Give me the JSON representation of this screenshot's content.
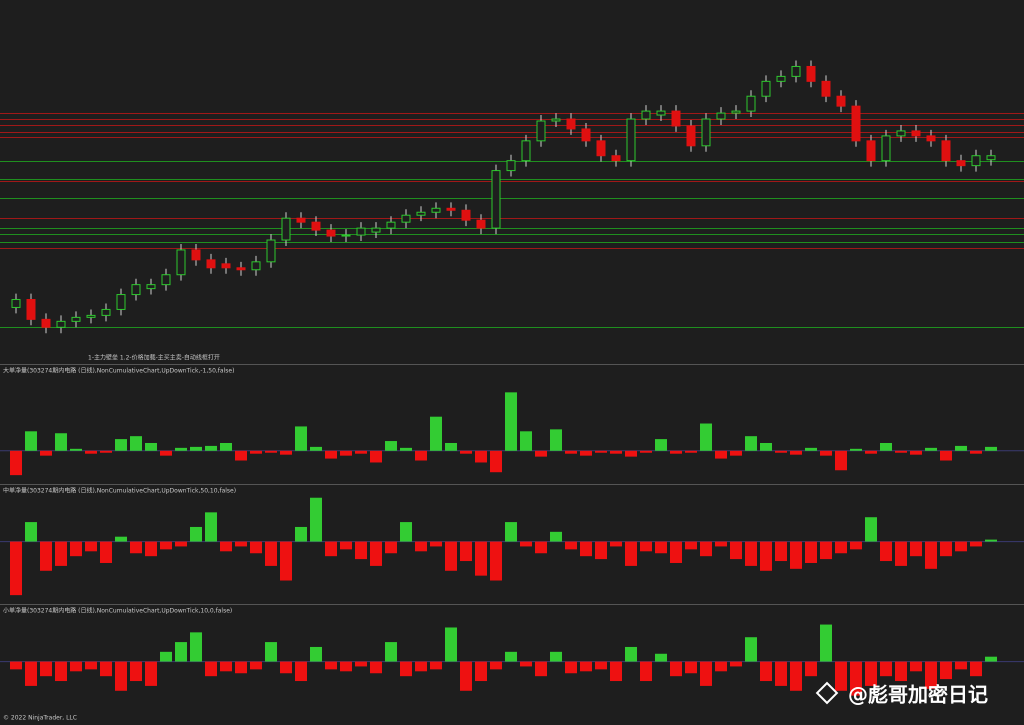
{
  "chart_data": [
    {
      "type": "candlestick",
      "annotation": "1-主力壁垒 1.2-价格加载-主买主卖-自动线框打开",
      "up_color": "#2ec82e",
      "down_color": "#e01010",
      "ylim": [
        0,
        363
      ],
      "open": [
        55,
        63,
        43,
        35,
        41,
        45,
        47,
        53,
        68,
        74,
        78,
        88,
        113,
        103,
        99,
        95,
        93,
        101,
        123,
        145,
        141,
        133,
        127,
        128,
        131,
        135,
        141,
        148,
        151,
        155,
        153,
        143,
        135,
        193,
        203,
        223,
        243,
        245,
        235,
        223,
        208,
        203,
        245,
        249,
        253,
        238,
        218,
        245,
        251,
        253,
        268,
        283,
        288,
        298,
        283,
        268,
        258,
        223,
        203,
        228,
        233,
        228,
        223,
        203,
        198,
        204
      ],
      "high": [
        69,
        69,
        49,
        47,
        51,
        53,
        59,
        74,
        84,
        84,
        94,
        119,
        119,
        109,
        105,
        101,
        107,
        129,
        151,
        151,
        147,
        139,
        134,
        141,
        141,
        147,
        154,
        157,
        161,
        161,
        159,
        149,
        199,
        209,
        229,
        249,
        251,
        251,
        241,
        229,
        214,
        251,
        259,
        259,
        259,
        244,
        251,
        257,
        259,
        274,
        289,
        294,
        304,
        304,
        289,
        274,
        264,
        229,
        234,
        239,
        239,
        234,
        229,
        209,
        214,
        214
      ],
      "low": [
        49,
        37,
        29,
        29,
        35,
        39,
        41,
        47,
        62,
        68,
        72,
        82,
        97,
        89,
        89,
        87,
        87,
        95,
        117,
        135,
        127,
        121,
        121,
        122,
        125,
        129,
        135,
        142,
        145,
        147,
        137,
        129,
        129,
        187,
        197,
        217,
        237,
        229,
        217,
        202,
        197,
        197,
        239,
        243,
        232,
        212,
        212,
        239,
        245,
        247,
        262,
        277,
        282,
        277,
        262,
        252,
        217,
        197,
        197,
        222,
        222,
        217,
        197,
        192,
        192,
        198
      ],
      "close": [
        63,
        43,
        35,
        41,
        45,
        47,
        53,
        68,
        78,
        78,
        88,
        113,
        103,
        95,
        95,
        93,
        101,
        123,
        145,
        141,
        133,
        127,
        128,
        135,
        135,
        141,
        148,
        151,
        155,
        153,
        143,
        135,
        193,
        203,
        223,
        243,
        245,
        235,
        223,
        208,
        203,
        245,
        253,
        253,
        238,
        218,
        245,
        251,
        253,
        268,
        283,
        288,
        298,
        283,
        268,
        258,
        223,
        203,
        228,
        233,
        228,
        223,
        203,
        198,
        208,
        208
      ],
      "levels": [
        {
          "value": 251,
          "color": "#a01818"
        },
        {
          "value": 245,
          "color": "#a01818"
        },
        {
          "value": 239,
          "color": "#a01818"
        },
        {
          "value": 232,
          "color": "#a01818"
        },
        {
          "value": 227,
          "color": "#a01818"
        },
        {
          "value": 183,
          "color": "#a01818"
        },
        {
          "value": 145,
          "color": "#a01818"
        },
        {
          "value": 115,
          "color": "#a01818"
        },
        {
          "value": 203,
          "color": "#1f8f1f"
        },
        {
          "value": 185,
          "color": "#1f8f1f"
        },
        {
          "value": 165,
          "color": "#1f8f1f"
        },
        {
          "value": 135,
          "color": "#1f8f1f"
        },
        {
          "value": 129,
          "color": "#1f8f1f"
        },
        {
          "value": 121,
          "color": "#1f8f1f"
        },
        {
          "value": 35,
          "color": "#1f8f1f"
        }
      ]
    },
    {
      "type": "bar",
      "title": "大单净量(303274期内电路 (日线),NonCumulativeChart,UpDownTick,-1,50,false)",
      "pos_color": "#33cc33",
      "neg_color": "#ee1111",
      "ylim": [
        -30,
        85
      ],
      "values": [
        -25,
        20,
        -5,
        18,
        2,
        -3,
        -2,
        12,
        15,
        8,
        -5,
        3,
        4,
        5,
        8,
        -10,
        -3,
        -2,
        -4,
        25,
        4,
        -8,
        -5,
        -3,
        -12,
        10,
        3,
        -10,
        35,
        8,
        -3,
        -12,
        -22,
        60,
        20,
        -6,
        22,
        -3,
        -5,
        -2,
        -3,
        -6,
        -2,
        12,
        -3,
        -2,
        28,
        -8,
        -5,
        15,
        8,
        -2,
        -4,
        3,
        -5,
        -20,
        2,
        -3,
        8,
        -2,
        -4,
        3,
        -10,
        5,
        -3,
        4
      ]
    },
    {
      "type": "bar",
      "title": "中单净量(303274期内电路 (日线),NonCumulativeChart,UpDownTick,50,10,false)",
      "pos_color": "#33cc33",
      "neg_color": "#ee1111",
      "ylim": [
        -60,
        55
      ],
      "values": [
        -55,
        20,
        -30,
        -25,
        -15,
        -10,
        -22,
        5,
        -12,
        -15,
        -8,
        -5,
        15,
        30,
        -10,
        -5,
        -12,
        -25,
        -40,
        15,
        45,
        -15,
        -8,
        -18,
        -25,
        -12,
        20,
        -10,
        -5,
        -30,
        -20,
        -35,
        -40,
        20,
        -5,
        -12,
        10,
        -8,
        -15,
        -18,
        -5,
        -25,
        -10,
        -12,
        -22,
        -8,
        -15,
        -5,
        -18,
        -25,
        -30,
        -20,
        -28,
        -22,
        -18,
        -12,
        -8,
        25,
        -20,
        -25,
        -15,
        -28,
        -15,
        -10,
        -5,
        2
      ]
    },
    {
      "type": "bar",
      "title": "小单净量(303274期内电路 (日线),NonCumulativeChart,UpDownTick,10,0,false)",
      "pos_color": "#33cc33",
      "neg_color": "#ee1111",
      "ylim": [
        -60,
        55
      ],
      "values": [
        -8,
        -25,
        -15,
        -20,
        -10,
        -8,
        -15,
        -30,
        -20,
        -25,
        10,
        20,
        30,
        -15,
        -10,
        -12,
        -8,
        20,
        -12,
        -20,
        15,
        -8,
        -10,
        -5,
        -12,
        20,
        -15,
        -10,
        -8,
        35,
        -30,
        -20,
        -8,
        10,
        -5,
        -15,
        10,
        -12,
        -10,
        -8,
        -20,
        15,
        -20,
        8,
        -15,
        -12,
        -25,
        -10,
        -5,
        25,
        -20,
        -25,
        -30,
        -15,
        38,
        -30,
        -35,
        -25,
        -15,
        -20,
        -10,
        -28,
        -18,
        -8,
        -15,
        5
      ]
    }
  ],
  "footer": "© 2022 NinjaTrader, LLC",
  "watermark": "@彪哥加密日记"
}
